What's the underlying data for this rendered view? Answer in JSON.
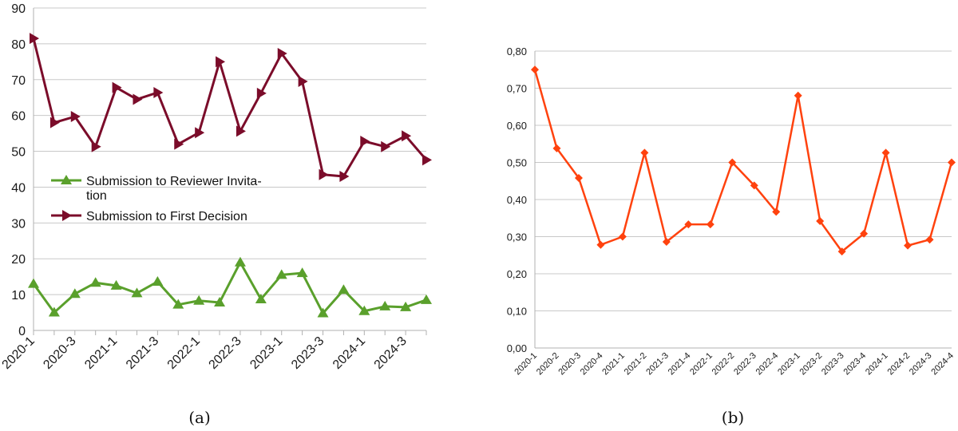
{
  "chart_data": [
    {
      "type": "line",
      "caption": "(a)",
      "categories": [
        "2020-1",
        "2020-2",
        "2020-3",
        "2020-4",
        "2021-1",
        "2021-2",
        "2021-3",
        "2021-4",
        "2022-1",
        "2022-2",
        "2022-3",
        "2022-4",
        "2023-1",
        "2023-2",
        "2023-3",
        "2023-4",
        "2024-1",
        "2024-2",
        "2024-3",
        "2024-4"
      ],
      "tick_labels": [
        "2020-1",
        "",
        "2020-3",
        "",
        "2021-1",
        "",
        "2021-3",
        "",
        "2022-1",
        "",
        "2022-3",
        "",
        "2023-1",
        "",
        "2023-3",
        "",
        "2024-1",
        "",
        "2024-3",
        ""
      ],
      "ylim": [
        0,
        90
      ],
      "yticks": [
        "0",
        "10",
        "20",
        "30",
        "40",
        "50",
        "60",
        "70",
        "80",
        "90"
      ],
      "grid": true,
      "legend_placement": "center-left",
      "series": [
        {
          "name": "Submission to Reviewer Invitation",
          "legend_lines": [
            "Submission to Reviewer Invita-",
            "tion"
          ],
          "color": "#5aa02c",
          "marker": "triangle-up",
          "values": [
            13.0,
            5.0,
            10.2,
            13.3,
            12.5,
            10.4,
            13.6,
            7.2,
            8.3,
            7.8,
            19.0,
            8.7,
            15.5,
            16.0,
            4.8,
            11.3,
            5.4,
            6.7,
            6.5,
            8.5
          ]
        },
        {
          "name": "Submission to First Decision",
          "legend_lines": [
            "Submission to First Decision"
          ],
          "color": "#7b0c2a",
          "marker": "triangle-right",
          "values": [
            81.5,
            58.0,
            59.7,
            51.3,
            67.8,
            64.5,
            66.4,
            52.0,
            55.2,
            75.0,
            55.6,
            66.2,
            77.3,
            69.5,
            43.5,
            43.0,
            52.8,
            51.3,
            54.3,
            47.6
          ]
        }
      ]
    },
    {
      "type": "line",
      "caption": "(b)",
      "categories": [
        "2020-1",
        "2020-2",
        "2020-3",
        "2020-4",
        "2021-1",
        "2021-2",
        "2021-3",
        "2021-4",
        "2022-1",
        "2022-2",
        "2022-3",
        "2022-4",
        "2023-1",
        "2023-2",
        "2023-3",
        "2023-4",
        "2024-1",
        "2024-2",
        "2024-3",
        "2024-4"
      ],
      "ylim": [
        0,
        0.8
      ],
      "yticks": [
        "0,00",
        "0,10",
        "0,20",
        "0,30",
        "0,40",
        "0,50",
        "0,60",
        "0,70",
        "0,80"
      ],
      "grid": true,
      "series": [
        {
          "color": "#ff420e",
          "marker": "diamond",
          "values": [
            0.75,
            0.538,
            0.458,
            0.278,
            0.3,
            0.526,
            0.286,
            0.333,
            0.333,
            0.5,
            0.438,
            0.367,
            0.68,
            0.342,
            0.26,
            0.308,
            0.526,
            0.276,
            0.292,
            0.5
          ]
        }
      ]
    }
  ]
}
